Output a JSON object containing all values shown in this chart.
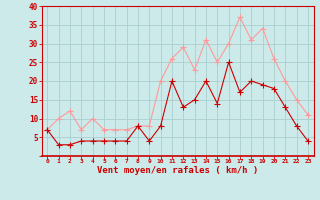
{
  "hours": [
    0,
    1,
    2,
    3,
    4,
    5,
    6,
    7,
    8,
    9,
    10,
    11,
    12,
    13,
    14,
    15,
    16,
    17,
    18,
    19,
    20,
    21,
    22,
    23
  ],
  "wind_avg": [
    7,
    3,
    3,
    4,
    4,
    4,
    4,
    4,
    8,
    4,
    8,
    20,
    13,
    15,
    20,
    14,
    25,
    17,
    20,
    19,
    18,
    13,
    8,
    4
  ],
  "wind_gust": [
    7,
    10,
    12,
    7,
    10,
    7,
    7,
    7,
    8,
    8,
    20,
    26,
    29,
    23,
    31,
    25,
    30,
    37,
    31,
    34,
    26,
    20,
    15,
    11
  ],
  "bg_color": "#cdeaea",
  "grid_color": "#aacece",
  "line_avg_color": "#cc0000",
  "line_gust_color": "#ff9999",
  "xlabel": "Vent moyen/en rafales ( km/h )",
  "xlabel_color": "#cc0000",
  "tick_color": "#cc0000",
  "ylim": [
    0,
    40
  ],
  "yticks": [
    0,
    5,
    10,
    15,
    20,
    25,
    30,
    35,
    40
  ],
  "marker_size": 2.0
}
